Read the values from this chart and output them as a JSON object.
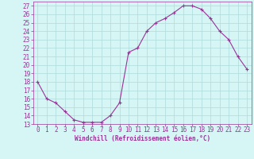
{
  "x": [
    0,
    1,
    2,
    3,
    4,
    5,
    6,
    7,
    8,
    9,
    10,
    11,
    12,
    13,
    14,
    15,
    16,
    17,
    18,
    19,
    20,
    21,
    22,
    23
  ],
  "y": [
    18,
    16,
    15.5,
    14.5,
    13.5,
    13.2,
    13.2,
    13.2,
    14,
    15.5,
    21.5,
    22,
    24,
    25,
    25.5,
    26.2,
    27,
    27,
    26.6,
    25.5,
    24,
    23,
    21,
    19.5
  ],
  "line_color": "#993399",
  "marker": "+",
  "marker_size": 3,
  "bg_color": "#d6f5f5",
  "grid_color": "#b0dada",
  "xlabel": "Windchill (Refroidissement éolien,°C)",
  "xlabel_color": "#993399",
  "tick_color": "#993399",
  "label_color": "#993399",
  "ylim": [
    13,
    27.5
  ],
  "xlim": [
    -0.5,
    23.5
  ],
  "yticks": [
    13,
    14,
    15,
    16,
    17,
    18,
    19,
    20,
    21,
    22,
    23,
    24,
    25,
    26,
    27
  ],
  "xticks": [
    0,
    1,
    2,
    3,
    4,
    5,
    6,
    7,
    8,
    9,
    10,
    11,
    12,
    13,
    14,
    15,
    16,
    17,
    18,
    19,
    20,
    21,
    22,
    23
  ],
  "tick_fontsize": 5.5,
  "xlabel_fontsize": 5.5,
  "linewidth": 0.8,
  "markeredgewidth": 0.8
}
